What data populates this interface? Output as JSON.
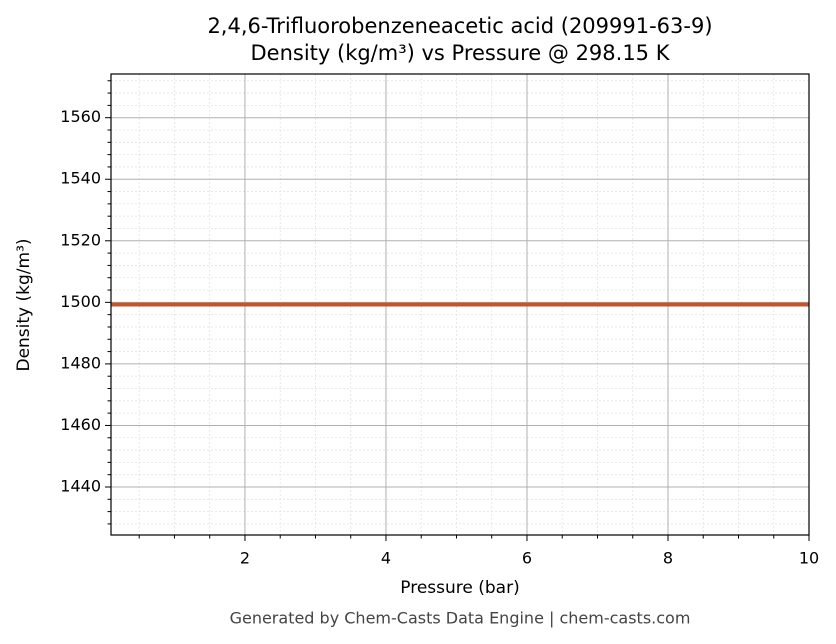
{
  "chart_data": {
    "type": "line",
    "title": "2,4,6-Trifluorobenzeneacetic acid (209991-63-9)",
    "subtitle": "Density (kg/m³) vs Pressure @ 298.15 K",
    "x_label": "Pressure (bar)",
    "y_label": "Density (kg/m³)",
    "footer": "Generated by Chem-Casts Data Engine | chem-casts.com",
    "x": [
      0.1,
      10
    ],
    "series": [
      {
        "name": "Density",
        "color": "#c0562b",
        "values": [
          1499.3,
          1499.3
        ]
      }
    ],
    "xlim": [
      0.1,
      10
    ],
    "ylim": [
      1424.4,
      1574.2
    ],
    "xticks": [
      2,
      4,
      6,
      8,
      10
    ],
    "yticks": [
      1440,
      1460,
      1480,
      1500,
      1520,
      1540,
      1560
    ],
    "xminorticks": [
      0.5,
      1,
      1.5,
      2.5,
      3,
      3.5,
      4.5,
      5,
      5.5,
      6.5,
      7,
      7.5,
      8.5,
      9,
      9.5
    ],
    "yminorticks": [
      1428,
      1432,
      1436,
      1444,
      1448,
      1452,
      1456,
      1464,
      1468,
      1472,
      1476,
      1484,
      1488,
      1492,
      1496,
      1504,
      1508,
      1512,
      1516,
      1524,
      1528,
      1532,
      1536,
      1544,
      1548,
      1552,
      1556,
      1564,
      1568,
      1572
    ],
    "grid": true,
    "legend": false
  }
}
